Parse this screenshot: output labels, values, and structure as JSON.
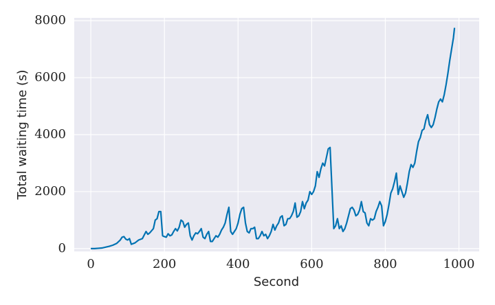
{
  "chart_data": {
    "type": "line",
    "xlabel": "Second",
    "ylabel": "Total waiting time (s)",
    "xlim": [
      -45,
      1055
    ],
    "ylim": [
      -100,
      8100
    ],
    "xticks": [
      0,
      200,
      400,
      600,
      800,
      1000
    ],
    "yticks": [
      0,
      2000,
      4000,
      6000,
      8000
    ],
    "grid": true,
    "x": [
      0,
      10,
      20,
      30,
      40,
      50,
      60,
      70,
      80,
      85,
      90,
      95,
      100,
      105,
      110,
      120,
      130,
      140,
      150,
      155,
      160,
      170,
      175,
      180,
      185,
      190,
      195,
      200,
      205,
      210,
      215,
      220,
      225,
      230,
      235,
      240,
      245,
      250,
      255,
      260,
      265,
      270,
      275,
      280,
      285,
      290,
      295,
      300,
      305,
      310,
      315,
      320,
      325,
      330,
      335,
      340,
      345,
      350,
      355,
      360,
      365,
      370,
      375,
      380,
      385,
      390,
      395,
      400,
      405,
      410,
      415,
      420,
      425,
      430,
      435,
      440,
      445,
      450,
      455,
      460,
      465,
      470,
      475,
      480,
      485,
      490,
      495,
      500,
      505,
      510,
      515,
      520,
      525,
      530,
      535,
      540,
      545,
      550,
      555,
      560,
      565,
      570,
      575,
      580,
      585,
      590,
      595,
      600,
      605,
      610,
      615,
      620,
      625,
      630,
      635,
      640,
      645,
      650,
      660,
      665,
      670,
      675,
      680,
      685,
      690,
      695,
      700,
      705,
      710,
      715,
      720,
      725,
      730,
      735,
      740,
      745,
      750,
      755,
      760,
      765,
      770,
      775,
      780,
      785,
      790,
      795,
      800,
      805,
      810,
      815,
      820,
      825,
      830,
      835,
      840,
      845,
      850,
      855,
      860,
      865,
      870,
      875,
      880,
      885,
      890,
      895,
      900,
      905,
      910,
      915,
      920,
      925,
      930,
      935,
      940,
      945,
      950,
      955,
      960,
      965,
      970,
      975,
      980,
      985,
      988
    ],
    "series": [
      {
        "color": "#0072b2",
        "values": [
          0,
          0,
          10,
          20,
          50,
          80,
          120,
          180,
          300,
          400,
          420,
          330,
          300,
          350,
          150,
          200,
          300,
          350,
          600,
          500,
          550,
          700,
          1000,
          1050,
          1300,
          1300,
          450,
          420,
          400,
          520,
          450,
          480,
          600,
          700,
          620,
          750,
          1000,
          950,
          750,
          850,
          900,
          450,
          300,
          450,
          550,
          520,
          600,
          700,
          400,
          350,
          500,
          600,
          250,
          250,
          350,
          450,
          400,
          500,
          650,
          750,
          900,
          1200,
          1450,
          600,
          500,
          600,
          700,
          900,
          1200,
          1400,
          1450,
          900,
          600,
          550,
          700,
          700,
          750,
          350,
          350,
          450,
          600,
          450,
          500,
          350,
          450,
          600,
          850,
          650,
          800,
          900,
          1100,
          1150,
          800,
          850,
          1050,
          1050,
          1150,
          1300,
          1600,
          1100,
          1150,
          1300,
          1650,
          1400,
          1600,
          1700,
          2000,
          1900,
          2000,
          2200,
          2700,
          2500,
          2800,
          3000,
          2900,
          3200,
          3500,
          3550,
          700,
          800,
          1050,
          700,
          800,
          600,
          700,
          900,
          1150,
          1400,
          1450,
          1350,
          1150,
          1200,
          1350,
          1650,
          1300,
          1250,
          900,
          800,
          1050,
          1000,
          1050,
          1300,
          1450,
          1650,
          1500,
          800,
          950,
          1200,
          1550,
          1950,
          2100,
          2350,
          2650,
          1900,
          2200,
          2000,
          1800,
          1950,
          2300,
          2700,
          2950,
          2850,
          3000,
          3400,
          3750,
          3900,
          4150,
          4200,
          4500,
          4700,
          4350,
          4250,
          4350,
          4600,
          4900,
          5150,
          5250,
          5150,
          5400,
          5750,
          6150,
          6600,
          7000,
          7400,
          7750
        ]
      }
    ]
  }
}
